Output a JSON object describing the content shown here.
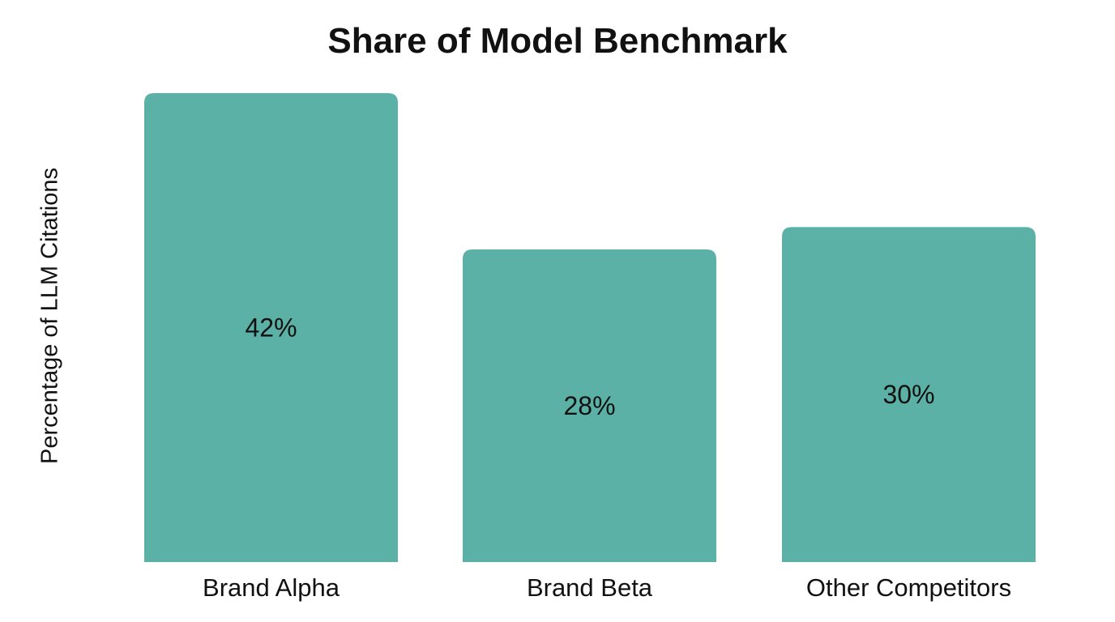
{
  "chart_data": {
    "type": "bar",
    "title": "Share of Model Benchmark",
    "xlabel": "",
    "ylabel": "Percentage of LLM Citations",
    "categories": [
      "Brand Alpha",
      "Brand Beta",
      "Other Competitors"
    ],
    "values": [
      42,
      28,
      30
    ],
    "data_labels": [
      "42%",
      "28%",
      "30%"
    ],
    "ylim": [
      0,
      42
    ],
    "grid": false,
    "bar_color": "#5BB1A6"
  }
}
